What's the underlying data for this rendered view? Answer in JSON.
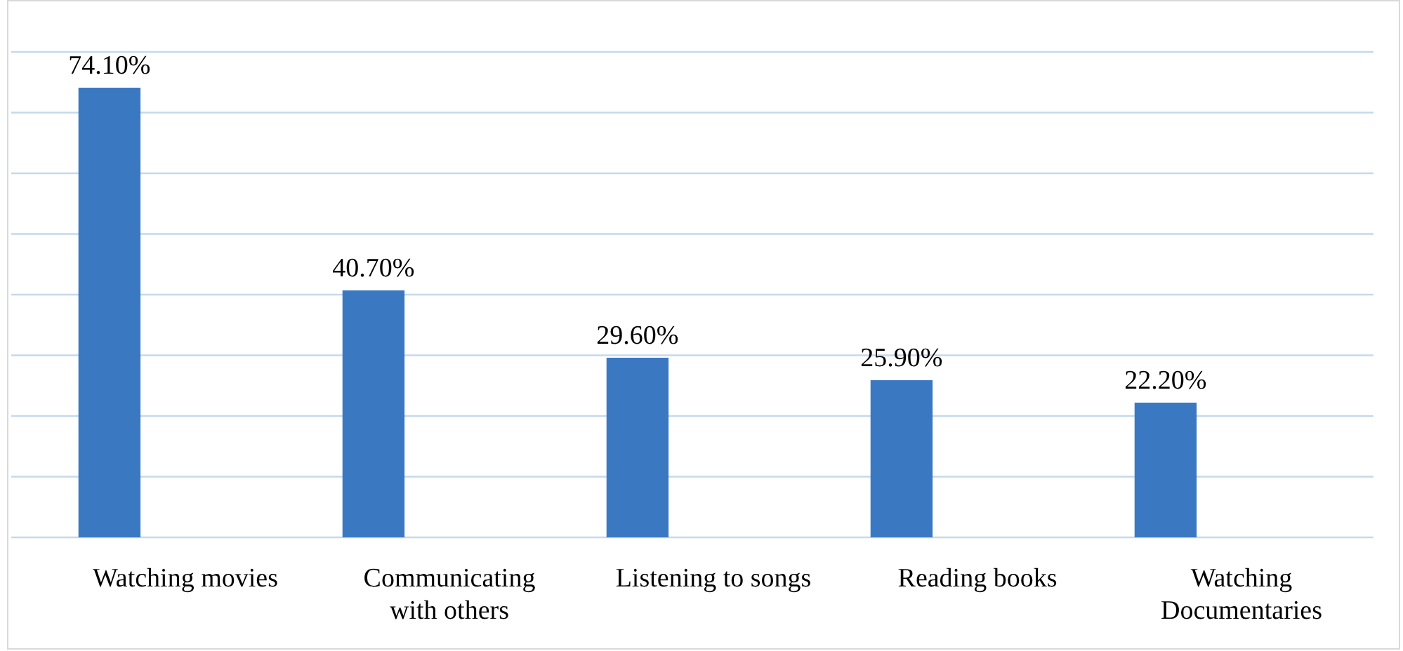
{
  "chart_data": {
    "type": "bar",
    "categories": [
      "Watching movies",
      "Communicating with others",
      "Listening to songs",
      "Reading books",
      "Watching Documentaries"
    ],
    "values": [
      74.1,
      40.7,
      29.6,
      25.9,
      22.2
    ],
    "value_labels": [
      "74.10%",
      "40.70%",
      "29.60%",
      "25.90%",
      "22.20%"
    ],
    "color": "#3a78c2",
    "ylim": [
      0,
      80
    ],
    "yticks": [
      {
        "value": 0,
        "label": null
      },
      {
        "value": 10,
        "label": null
      },
      {
        "value": 20,
        "label": null
      },
      {
        "value": 30,
        "label": null
      },
      {
        "value": 40,
        "label": null
      },
      {
        "value": 50,
        "label": null
      },
      {
        "value": 60,
        "label": null
      },
      {
        "value": 70,
        "label": null
      },
      {
        "value": 80,
        "label": null
      }
    ],
    "grid": "y",
    "tick_labels": "x"
  }
}
